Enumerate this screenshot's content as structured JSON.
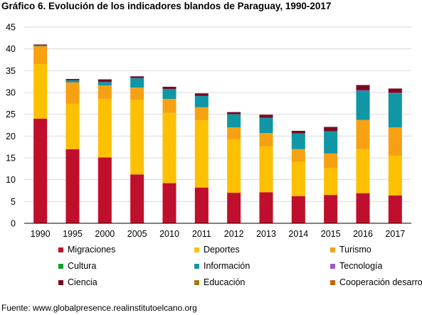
{
  "chart_data": {
    "type": "bar",
    "stacked": true,
    "title": "Gráfico 6. Evolución de los indicadores blandos de Paraguay, 1990-2017",
    "xlabel": "",
    "ylabel": "",
    "ylim": [
      0,
      45
    ],
    "yticks": [
      0,
      5,
      10,
      15,
      20,
      25,
      30,
      35,
      40,
      45
    ],
    "grid": "horizontal",
    "legend_position": "bottom",
    "categories": [
      "1990",
      "1995",
      "2000",
      "2005",
      "2010",
      "2011",
      "2012",
      "2013",
      "2014",
      "2015",
      "2016",
      "2017"
    ],
    "series": [
      {
        "name": "Migraciones",
        "color": "#c00f2d",
        "values": [
          24.0,
          17.0,
          15.1,
          11.2,
          9.2,
          8.2,
          7.0,
          7.1,
          6.2,
          6.5,
          6.9,
          6.4
        ]
      },
      {
        "name": "Deportes",
        "color": "#ffc000",
        "values": [
          12.5,
          10.4,
          13.4,
          17.1,
          16.1,
          15.4,
          12.2,
          10.5,
          7.9,
          6.2,
          10.1,
          9.1
        ]
      },
      {
        "name": "Turismo",
        "color": "#f7a012",
        "values": [
          4.1,
          4.9,
          3.1,
          2.8,
          3.2,
          3.0,
          2.8,
          3.1,
          2.9,
          3.3,
          6.7,
          6.5
        ]
      },
      {
        "name": "Cultura",
        "color": "#12a12a",
        "values": [
          0,
          0,
          0,
          0,
          0,
          0,
          0,
          0,
          0,
          0,
          0,
          0
        ]
      },
      {
        "name": "Información",
        "color": "#0f97a6",
        "values": [
          0.2,
          0.5,
          0.8,
          2.2,
          2.3,
          2.6,
          3.0,
          3.5,
          3.6,
          5.1,
          6.7,
          7.8
        ]
      },
      {
        "name": "Tecnología",
        "color": "#9b59d0",
        "values": [
          0,
          0,
          0,
          0,
          0,
          0,
          0,
          0,
          0,
          0,
          0.1,
          0.1
        ]
      },
      {
        "name": "Ciencia",
        "color": "#7a0a20",
        "values": [
          0.2,
          0.3,
          0.6,
          0.4,
          0.5,
          0.6,
          0.5,
          0.7,
          0.6,
          1.0,
          1.2,
          1.0
        ]
      },
      {
        "name": "Educación",
        "color": "#a77a10",
        "values": [
          0,
          0,
          0,
          0,
          0,
          0,
          0,
          0,
          0,
          0,
          0,
          0
        ]
      },
      {
        "name": "Cooperación desarrollo",
        "color": "#c8640c",
        "values": [
          0,
          0,
          0,
          0,
          0,
          0,
          0,
          0,
          0,
          0,
          0,
          0
        ]
      }
    ]
  },
  "source_note": "Fuente: www.globalpresence.realinstitutoelcano.org"
}
